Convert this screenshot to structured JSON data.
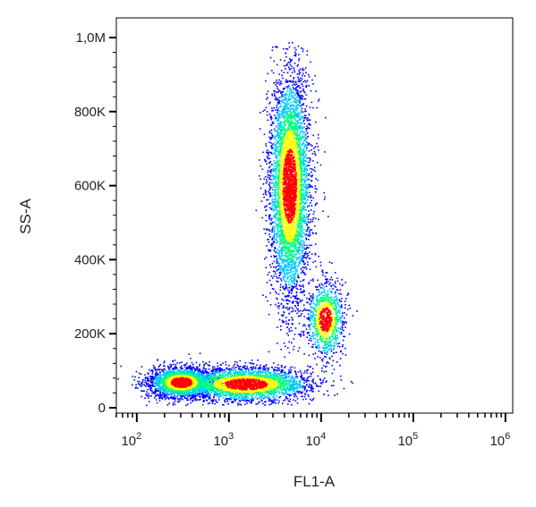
{
  "chart_data": {
    "type": "scatter",
    "title": "",
    "xlabel": "FL1-A",
    "ylabel": "SS-A",
    "x_scale": "log",
    "y_scale": "linear",
    "xlim": [
      60,
      1200000
    ],
    "ylim": [
      0,
      1000000
    ],
    "x_ticks": [
      {
        "value": 100,
        "base": "10",
        "exp": "2"
      },
      {
        "value": 1000,
        "base": "10",
        "exp": "3"
      },
      {
        "value": 10000,
        "base": "10",
        "exp": "4"
      },
      {
        "value": 100000,
        "base": "10",
        "exp": "5"
      },
      {
        "value": 1000000,
        "base": "10",
        "exp": "6"
      }
    ],
    "y_ticks": [
      {
        "value": 0,
        "label": "0"
      },
      {
        "value": 200000,
        "label": "200K"
      },
      {
        "value": 400000,
        "label": "400K"
      },
      {
        "value": 600000,
        "label": "600K"
      },
      {
        "value": 800000,
        "label": "800K"
      },
      {
        "value": 1000000,
        "label": "1,0M"
      }
    ],
    "grid": false,
    "colormap": [
      "#0000ff",
      "#00c8ff",
      "#00ff80",
      "#ffff00",
      "#ff0000"
    ],
    "populations": [
      {
        "x_center": 300,
        "y_center": 70000,
        "x_spread_log": 0.17,
        "y_spread": 20000,
        "n": 2600
      },
      {
        "x_center": 1500,
        "y_center": 65000,
        "x_spread_log": 0.35,
        "y_spread": 22000,
        "n": 3000
      },
      {
        "x_center": 4500,
        "y_center": 600000,
        "x_spread_log": 0.11,
        "y_spread": 150000,
        "n": 5000
      },
      {
        "x_center": 11000,
        "y_center": 240000,
        "x_spread_log": 0.1,
        "y_spread": 50000,
        "n": 1100
      }
    ]
  }
}
